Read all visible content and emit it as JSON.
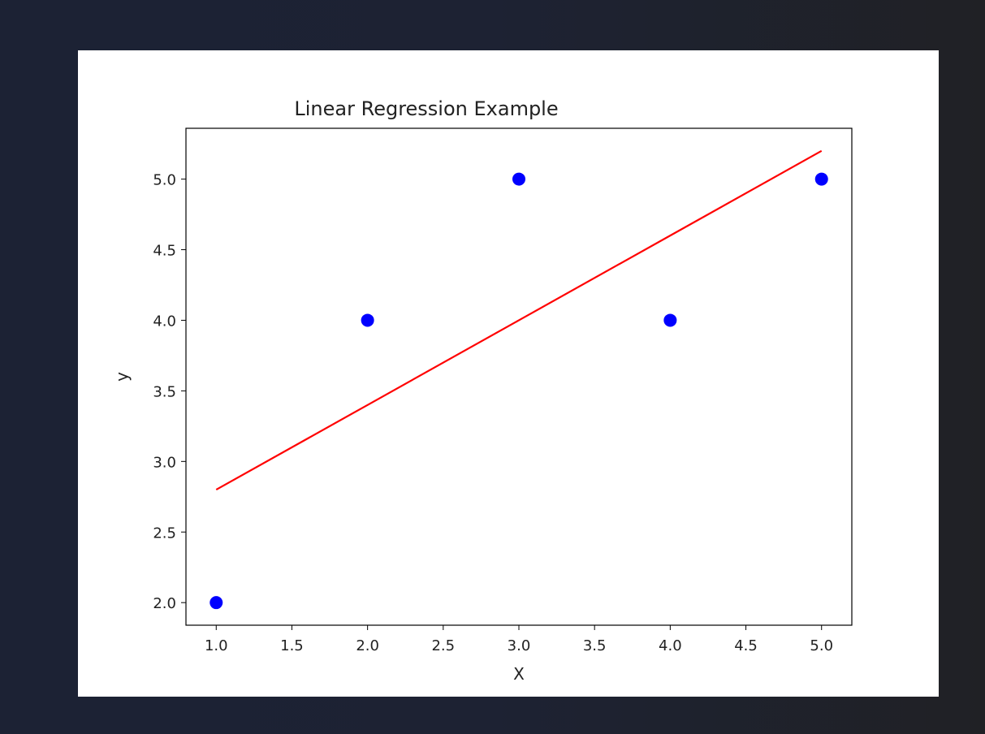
{
  "chart_data": {
    "type": "scatter",
    "title": "Linear Regression Example",
    "xlabel": "X",
    "ylabel": "y",
    "xlim": [
      0.8,
      5.2
    ],
    "ylim": [
      1.84,
      5.36
    ],
    "xticks": [
      "1.0",
      "1.5",
      "2.0",
      "2.5",
      "3.0",
      "3.5",
      "4.0",
      "4.5",
      "5.0"
    ],
    "yticks": [
      "2.0",
      "2.5",
      "3.0",
      "3.5",
      "4.0",
      "4.5",
      "5.0"
    ],
    "grid": false,
    "series": [
      {
        "type": "scatter",
        "color": "#0000ff",
        "x": [
          1,
          2,
          3,
          4,
          5
        ],
        "y": [
          2,
          4,
          5,
          4,
          5
        ]
      },
      {
        "type": "line",
        "color": "#ff0000",
        "x": [
          1,
          2,
          3,
          4,
          5
        ],
        "y": [
          2.8,
          3.4,
          4.0,
          4.6,
          5.2
        ]
      }
    ]
  }
}
